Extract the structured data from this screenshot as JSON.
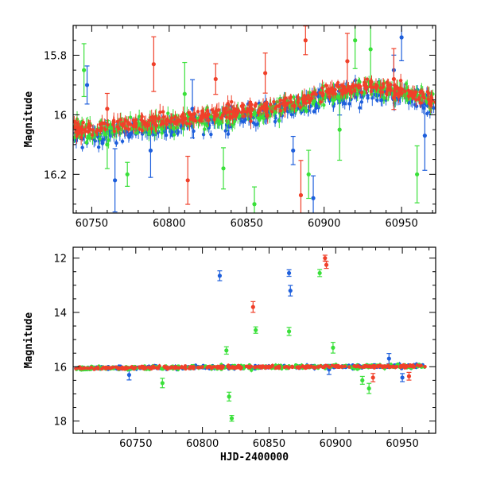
{
  "chart_data": [
    {
      "type": "scatter",
      "ylabel": "Magnitude",
      "xlabel": "",
      "xlim": [
        60738,
        60972
      ],
      "ylim": [
        16.33,
        15.7
      ],
      "y_inverted": true,
      "x_ticks": [
        60750,
        60800,
        60850,
        60900,
        60950
      ],
      "x_tick_labels": [
        "60750",
        "60800",
        "60850",
        "60900",
        "60950"
      ],
      "y_ticks": [
        15.8,
        16.0,
        16.2
      ],
      "y_tick_labels": [
        "15.8",
        "16",
        "16.2"
      ],
      "series": [
        {
          "name": "blue",
          "color": "#1e5fdc",
          "trend": [
            [
              60738,
              16.08
            ],
            [
              60780,
              16.05
            ],
            [
              60830,
              16.02
            ],
            [
              60870,
              15.99
            ],
            [
              60905,
              15.94
            ],
            [
              60930,
              15.92
            ],
            [
              60972,
              15.96
            ]
          ],
          "scatter": 0.035,
          "outliers": [
            [
              60747,
              15.9
            ],
            [
              60765,
              16.22
            ],
            [
              60788,
              16.12
            ],
            [
              60815,
              15.98
            ],
            [
              60880,
              16.12
            ],
            [
              60893,
              16.28
            ],
            [
              60910,
              15.95
            ],
            [
              60945,
              15.85
            ],
            [
              60950,
              15.74
            ],
            [
              60965,
              16.07
            ]
          ]
        },
        {
          "name": "green",
          "color": "#3ae03a",
          "trend": [
            [
              60738,
              16.06
            ],
            [
              60780,
              16.04
            ],
            [
              60830,
              16.01
            ],
            [
              60870,
              15.98
            ],
            [
              60905,
              15.93
            ],
            [
              60930,
              15.91
            ],
            [
              60972,
              15.95
            ]
          ],
          "scatter": 0.03,
          "outliers": [
            [
              60745,
              15.85
            ],
            [
              60760,
              16.1
            ],
            [
              60773,
              16.2
            ],
            [
              60810,
              15.93
            ],
            [
              60835,
              16.18
            ],
            [
              60855,
              16.3
            ],
            [
              60890,
              16.2
            ],
            [
              60910,
              16.05
            ],
            [
              60920,
              15.75
            ],
            [
              60930,
              15.78
            ],
            [
              60960,
              16.2
            ]
          ]
        },
        {
          "name": "red",
          "color": "#f0402a",
          "trend": [
            [
              60738,
              16.05
            ],
            [
              60780,
              16.03
            ],
            [
              60830,
              16.0
            ],
            [
              60870,
              15.97
            ],
            [
              60905,
              15.92
            ],
            [
              60930,
              15.9
            ],
            [
              60972,
              15.95
            ]
          ],
          "scatter": 0.025,
          "outliers": [
            [
              60760,
              15.98
            ],
            [
              60790,
              15.83
            ],
            [
              60812,
              16.22
            ],
            [
              60830,
              15.88
            ],
            [
              60862,
              15.86
            ],
            [
              60885,
              16.27
            ],
            [
              60888,
              15.75
            ],
            [
              60915,
              15.82
            ],
            [
              60945,
              15.88
            ]
          ]
        }
      ]
    },
    {
      "type": "scatter",
      "ylabel": "Magnitude",
      "xlabel": "HJD-2400000",
      "xlim": [
        60703,
        60975
      ],
      "ylim": [
        18.45,
        11.6
      ],
      "y_inverted": true,
      "x_ticks": [
        60750,
        60800,
        60850,
        60900,
        60950
      ],
      "x_tick_labels": [
        "60750",
        "60800",
        "60850",
        "60900",
        "60950"
      ],
      "y_ticks": [
        12,
        14,
        16,
        18
      ],
      "y_tick_labels": [
        "12",
        "14",
        "16",
        "18"
      ],
      "series": [
        {
          "name": "blue",
          "color": "#1e5fdc",
          "trend": [
            [
              60703,
              16.05
            ],
            [
              60972,
              15.98
            ]
          ],
          "scatter": 0.06,
          "outliers": [
            [
              60745,
              16.3
            ],
            [
              60813,
              12.65
            ],
            [
              60865,
              12.55
            ],
            [
              60866,
              13.2
            ],
            [
              60895,
              16.1
            ],
            [
              60940,
              15.7
            ],
            [
              60950,
              16.4
            ]
          ]
        },
        {
          "name": "green",
          "color": "#3ae03a",
          "trend": [
            [
              60703,
              16.05
            ],
            [
              60972,
              15.98
            ]
          ],
          "scatter": 0.07,
          "outliers": [
            [
              60770,
              16.6
            ],
            [
              60818,
              15.4
            ],
            [
              60820,
              17.1
            ],
            [
              60822,
              17.9
            ],
            [
              60840,
              14.65
            ],
            [
              60865,
              14.7
            ],
            [
              60888,
              12.55
            ],
            [
              60898,
              15.3
            ],
            [
              60920,
              16.5
            ],
            [
              60925,
              16.8
            ]
          ]
        },
        {
          "name": "red",
          "color": "#f0402a",
          "trend": [
            [
              60703,
              16.05
            ],
            [
              60972,
              15.98
            ]
          ],
          "scatter": 0.05,
          "outliers": [
            [
              60838,
              13.8
            ],
            [
              60892,
              12.0
            ],
            [
              60893,
              12.25
            ],
            [
              60928,
              16.4
            ],
            [
              60955,
              16.35
            ]
          ]
        }
      ]
    }
  ]
}
